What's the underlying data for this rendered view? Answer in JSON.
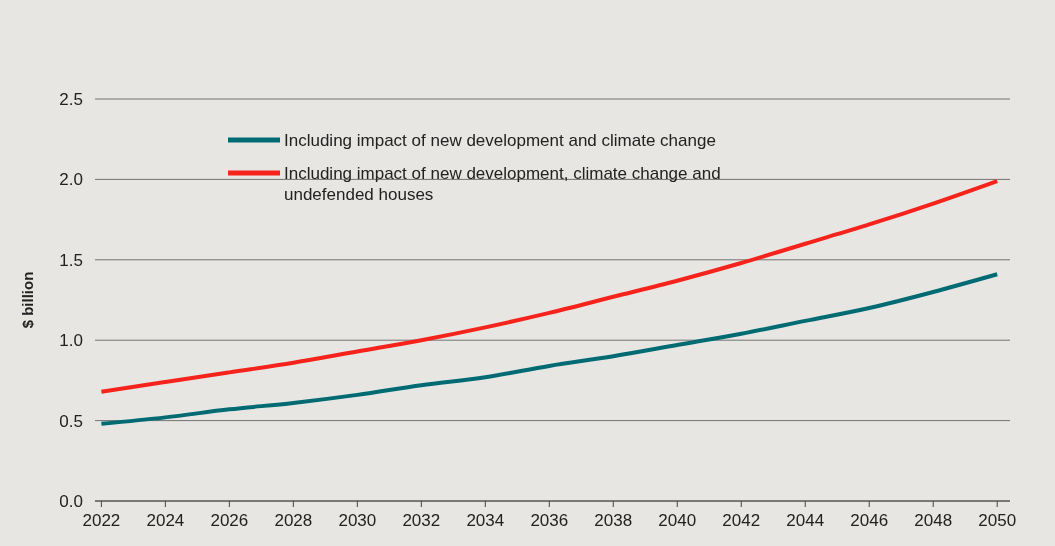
{
  "chart_data": {
    "type": "line",
    "ylabel": "$ billion",
    "x": [
      2022,
      2024,
      2026,
      2028,
      2030,
      2032,
      2034,
      2036,
      2038,
      2040,
      2042,
      2044,
      2046,
      2048,
      2050
    ],
    "series": [
      {
        "name": "Including impact of new development and climate change",
        "color": "#006b73",
        "values": [
          0.48,
          0.52,
          0.57,
          0.61,
          0.66,
          0.72,
          0.77,
          0.84,
          0.9,
          0.97,
          1.04,
          1.12,
          1.2,
          1.3,
          1.41
        ]
      },
      {
        "name": "Including impact of new development, climate change and undefended houses",
        "color": "#f5231b",
        "values": [
          0.68,
          0.74,
          0.8,
          0.86,
          0.93,
          1.0,
          1.08,
          1.17,
          1.27,
          1.37,
          1.48,
          1.6,
          1.72,
          1.85,
          1.99
        ]
      }
    ],
    "xlim": [
      2021.8,
      2050.4
    ],
    "xticks": [
      2022,
      2024,
      2026,
      2028,
      2030,
      2032,
      2034,
      2036,
      2038,
      2040,
      2042,
      2044,
      2046,
      2048,
      2050
    ],
    "ylim": [
      0,
      2.5
    ],
    "yticks": [
      {
        "value": 0,
        "label": "0.0"
      },
      {
        "value": 0.5,
        "label": "0.5"
      },
      {
        "value": 1,
        "label": "1.0"
      },
      {
        "value": 1.5,
        "label": "1.5"
      },
      {
        "value": 2,
        "label": "2.0"
      },
      {
        "value": 2.5,
        "label": "2.5"
      }
    ],
    "grid": "y",
    "legend": "top",
    "line_style": "solid",
    "marker": "none"
  }
}
